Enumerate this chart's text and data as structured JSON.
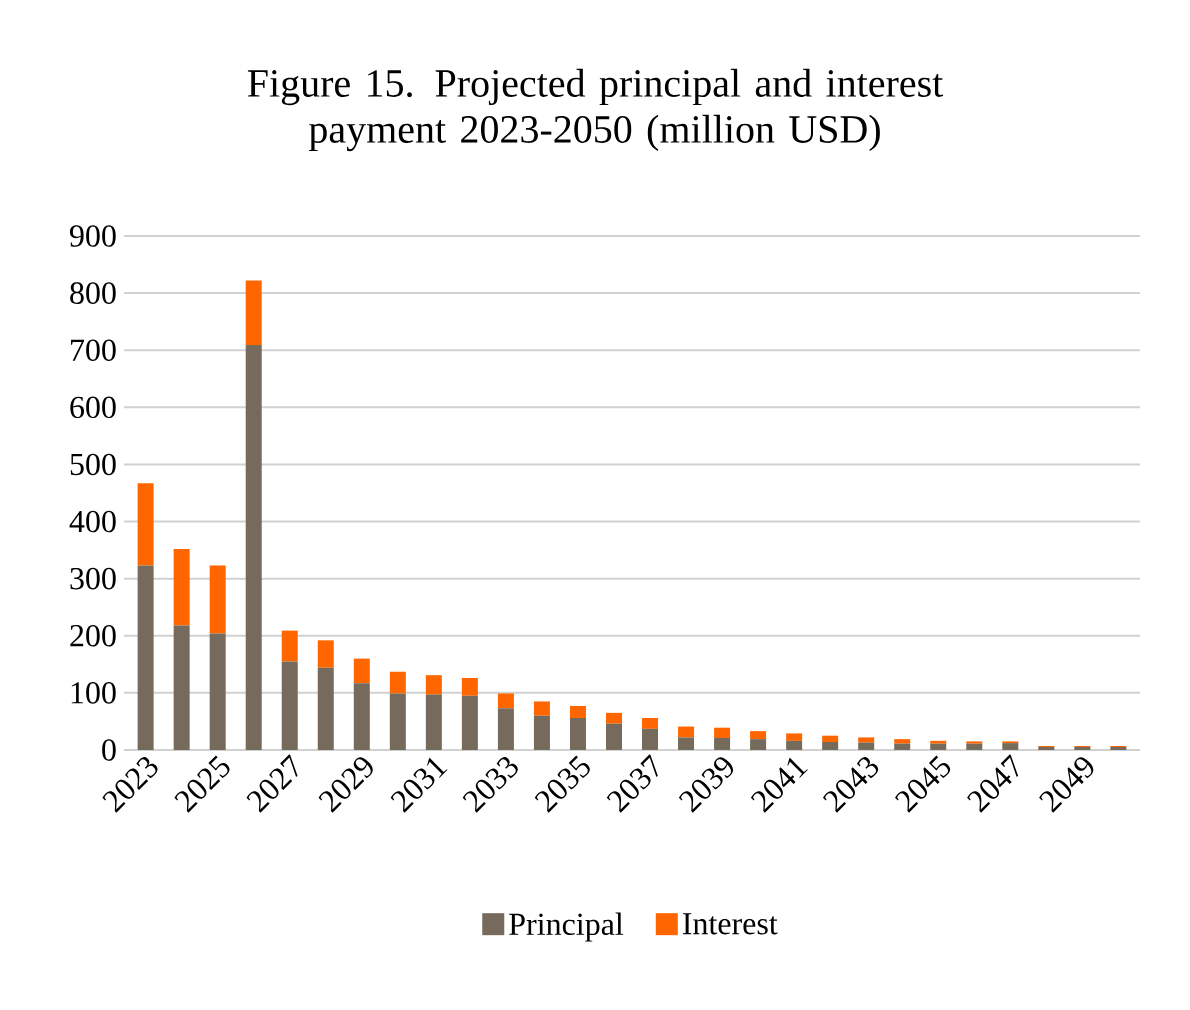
{
  "chart_data": {
    "type": "bar",
    "title": "Figure 15. Projected principal and interest payment 2023-2050 (million USD)",
    "stacked": true,
    "categories": [
      "2023",
      null,
      "2025",
      null,
      "2027",
      null,
      "2029",
      null,
      "2031",
      null,
      "2033",
      null,
      "2035",
      null,
      "2037",
      null,
      "2039",
      null,
      "2041",
      null,
      "2043",
      null,
      "2045",
      null,
      "2047",
      null,
      "2049",
      null
    ],
    "series": [
      {
        "name": "Principal",
        "color": "#756a5b",
        "values": [
          323,
          218,
          204,
          709,
          155,
          144,
          117,
          99,
          97,
          95,
          73,
          60,
          56,
          46,
          37,
          22,
          21,
          19,
          16,
          14,
          13,
          11,
          11,
          11,
          12,
          5,
          5,
          5
        ]
      },
      {
        "name": "Interest",
        "color": "#ff6600",
        "values": [
          144,
          134,
          119,
          113,
          54,
          48,
          43,
          38,
          34,
          31,
          26,
          25,
          21,
          19,
          19,
          19,
          18,
          14,
          13,
          11,
          9,
          8,
          5,
          4,
          3,
          2,
          2,
          2
        ]
      }
    ],
    "ylim": [
      0,
      900
    ],
    "yticks": [
      0,
      100,
      200,
      300,
      400,
      500,
      600,
      700,
      800,
      900
    ],
    "grid": "y",
    "legend": "bottom"
  }
}
